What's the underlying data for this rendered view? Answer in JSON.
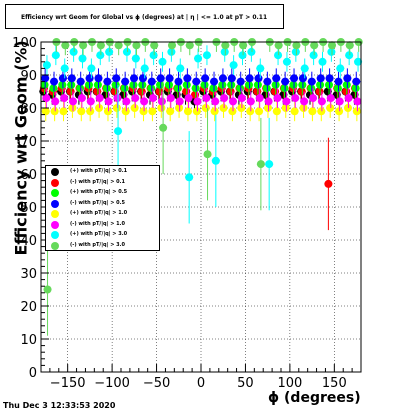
{
  "title": "Efficiency wrt Geom for Global vs ϕ (degrees) at | η | <= 1.0 at pT > 0.11",
  "timestamp": "Thu Dec  3 12:33:53 2020",
  "chart_data": {
    "type": "scatter",
    "title": "Efficiency wrt Geom for Global vs ϕ (degrees) at | η | <= 1.0 at pT > 0.11",
    "xlabel": "ϕ (degrees)",
    "ylabel": "Efficiency wrt Geom (%)",
    "xlim": [
      -180,
      180
    ],
    "ylim": [
      0,
      100
    ],
    "x_ticks": [
      -150,
      -100,
      -50,
      0,
      50,
      100,
      150
    ],
    "y_ticks": [
      0,
      10,
      20,
      30,
      40,
      50,
      60,
      70,
      80,
      90,
      100
    ],
    "grid": true,
    "legend_position": "left-middle",
    "series": [
      {
        "name": "(+) with pT/|q| > 0.1",
        "color": "#000000",
        "x": [
          -175,
          -165,
          -155,
          -145,
          -135,
          -125,
          -115,
          -105,
          -95,
          -85,
          -75,
          -65,
          -55,
          -45,
          -35,
          -25,
          -15,
          -5,
          5,
          15,
          25,
          35,
          45,
          55,
          65,
          75,
          85,
          95,
          105,
          115,
          125,
          135,
          145,
          155,
          165,
          175
        ],
        "y": [
          85,
          84,
          85,
          85,
          84,
          85,
          85,
          84,
          85,
          84,
          85,
          85,
          84,
          85,
          85,
          84,
          84,
          82,
          85,
          84,
          85,
          85,
          84,
          85,
          85,
          84,
          85,
          84,
          85,
          85,
          84,
          85,
          85,
          84,
          85,
          84
        ]
      },
      {
        "name": "(-) with pT/|q| > 0.1",
        "color": "#ff0000",
        "x": [
          -175,
          -165,
          -155,
          -145,
          -135,
          -125,
          -115,
          -105,
          -95,
          -85,
          -75,
          -65,
          -55,
          -45,
          -35,
          -25,
          -15,
          -5,
          5,
          15,
          25,
          35,
          45,
          55,
          65,
          75,
          85,
          95,
          105,
          115,
          125,
          135,
          145,
          155,
          165,
          175
        ],
        "y": [
          86,
          85,
          86,
          85,
          86,
          86,
          85,
          86,
          85,
          86,
          86,
          85,
          86,
          85,
          86,
          86,
          85,
          84,
          86,
          85,
          86,
          85,
          86,
          86,
          85,
          86,
          85,
          86,
          86,
          85,
          86,
          85,
          57,
          86,
          85,
          86
        ]
      },
      {
        "name": "(+) with pT/|q| > 0.5",
        "color": "#00ff00",
        "x": [
          -175,
          -165,
          -155,
          -145,
          -135,
          -125,
          -115,
          -105,
          -95,
          -85,
          -75,
          -65,
          -55,
          -45,
          -35,
          -25,
          -15,
          -5,
          5,
          15,
          25,
          35,
          45,
          55,
          65,
          75,
          85,
          95,
          105,
          115,
          125,
          135,
          145,
          155,
          165,
          175
        ],
        "y": [
          87,
          86,
          87,
          87,
          86,
          87,
          87,
          86,
          87,
          86,
          87,
          87,
          86,
          87,
          87,
          86,
          87,
          86,
          87,
          86,
          87,
          87,
          86,
          87,
          87,
          86,
          87,
          86,
          87,
          87,
          86,
          87,
          87,
          86,
          87,
          86
        ]
      },
      {
        "name": "(-) with pT/|q| > 0.5",
        "color": "#0000ff",
        "x": [
          -175,
          -165,
          -155,
          -145,
          -135,
          -125,
          -115,
          -105,
          -95,
          -85,
          -75,
          -65,
          -55,
          -45,
          -35,
          -25,
          -15,
          -5,
          5,
          15,
          25,
          35,
          45,
          55,
          65,
          75,
          85,
          95,
          105,
          115,
          125,
          135,
          145,
          155,
          165,
          175
        ],
        "y": [
          89,
          88,
          89,
          89,
          88,
          89,
          89,
          88,
          89,
          88,
          89,
          89,
          88,
          89,
          89,
          88,
          89,
          88,
          89,
          88,
          89,
          89,
          88,
          89,
          89,
          88,
          89,
          88,
          89,
          89,
          88,
          89,
          89,
          88,
          89,
          88
        ]
      },
      {
        "name": "(+) with pT/|q| > 1.0",
        "color": "#ffff00",
        "x": [
          -175,
          -165,
          -155,
          -145,
          -135,
          -125,
          -115,
          -105,
          -95,
          -85,
          -75,
          -65,
          -55,
          -45,
          -35,
          -25,
          -15,
          -5,
          5,
          15,
          25,
          35,
          45,
          55,
          65,
          75,
          85,
          95,
          105,
          115,
          125,
          135,
          145,
          155,
          165,
          175
        ],
        "y": [
          79,
          79,
          79,
          80,
          79,
          79,
          80,
          79,
          80,
          79,
          80,
          79,
          79,
          80,
          79,
          80,
          79,
          79,
          80,
          79,
          80,
          79,
          80,
          79,
          79,
          80,
          79,
          80,
          79,
          80,
          79,
          79,
          80,
          79,
          80,
          79
        ]
      },
      {
        "name": "(-) with pT/|q| > 1.0",
        "color": "#ff00ff",
        "x": [
          -175,
          -165,
          -155,
          -145,
          -135,
          -125,
          -115,
          -105,
          -95,
          -85,
          -75,
          -65,
          -55,
          -45,
          -35,
          -25,
          -15,
          -5,
          5,
          15,
          25,
          35,
          45,
          55,
          65,
          75,
          85,
          95,
          105,
          115,
          125,
          135,
          145,
          155,
          165,
          175
        ],
        "y": [
          83,
          82,
          83,
          82,
          83,
          82,
          83,
          82,
          83,
          82,
          83,
          82,
          83,
          82,
          83,
          82,
          83,
          82,
          83,
          82,
          83,
          82,
          83,
          82,
          83,
          82,
          83,
          82,
          83,
          82,
          83,
          82,
          83,
          82,
          83,
          82
        ]
      },
      {
        "name": "(+) with pT/|q| > 3.0",
        "color": "#00ffff",
        "x": [
          -175,
          -165,
          -155,
          -145,
          -135,
          -125,
          -115,
          -105,
          -95,
          -85,
          -75,
          -65,
          -55,
          -45,
          -35,
          -25,
          -15,
          -5,
          5,
          15,
          25,
          35,
          45,
          55,
          65,
          75,
          85,
          95,
          105,
          115,
          125,
          135,
          145,
          155,
          165,
          175
        ],
        "y": [
          93,
          96,
          92,
          97,
          95,
          92,
          96,
          97,
          73,
          97,
          95,
          92,
          96,
          94,
          97,
          92,
          59,
          95,
          96,
          64,
          97,
          93,
          96,
          97,
          92,
          63,
          96,
          94,
          97,
          92,
          96,
          94,
          97,
          92,
          96,
          94
        ]
      },
      {
        "name": "(-) with pT/|q| > 3.0",
        "color": "#66d95b",
        "x": [
          -175,
          -165,
          -155,
          -145,
          -135,
          -125,
          -115,
          -105,
          -95,
          -85,
          -75,
          -65,
          -55,
          -45,
          -35,
          -25,
          -15,
          -5,
          5,
          15,
          25,
          35,
          45,
          55,
          65,
          75,
          85,
          95,
          105,
          115,
          125,
          135,
          145,
          155,
          165,
          175
        ],
        "y": [
          25,
          100,
          99,
          100,
          99,
          100,
          99,
          100,
          99,
          100,
          99,
          100,
          99,
          74,
          99,
          100,
          99,
          100,
          66,
          100,
          99,
          100,
          99,
          100,
          63,
          100,
          99,
          100,
          99,
          100,
          99,
          100,
          99,
          100,
          99,
          100
        ]
      }
    ]
  }
}
